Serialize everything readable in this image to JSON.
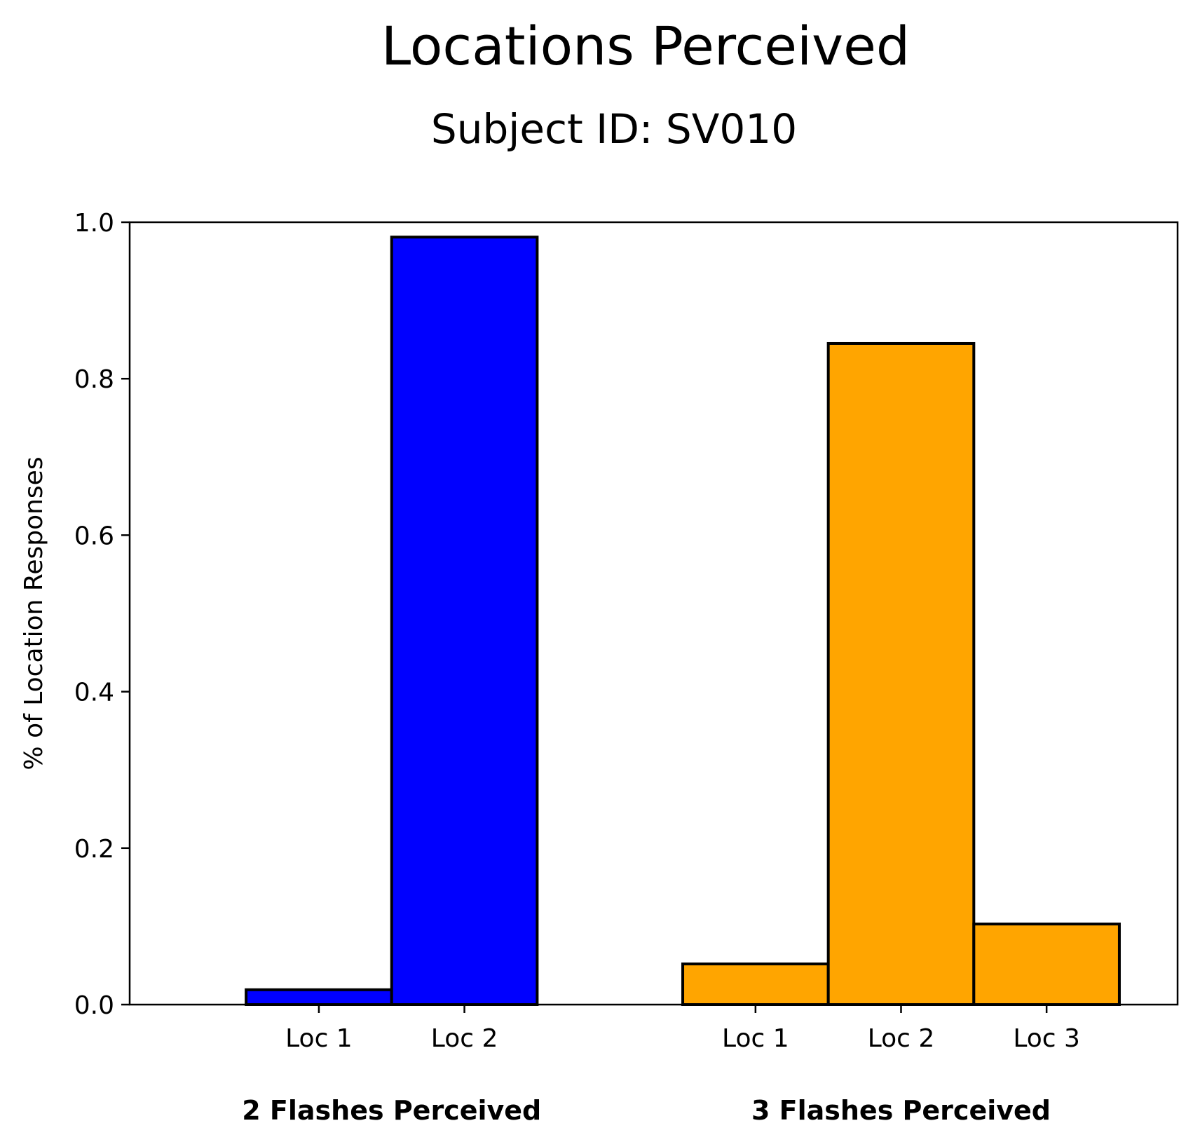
{
  "chart_data": {
    "type": "bar",
    "title": "Locations Perceived",
    "subtitle": "Subject ID: SV010",
    "ylabel": "% of Location Responses",
    "ylim": [
      0,
      1.0
    ],
    "yticks": [
      "0.0",
      "0.2",
      "0.4",
      "0.6",
      "0.8",
      "1.0"
    ],
    "grid": false,
    "groups": [
      {
        "label": "2 Flashes Perceived",
        "color": "#0000ff",
        "categories": [
          "Loc 1",
          "Loc 2"
        ],
        "values": [
          0.019,
          0.981
        ]
      },
      {
        "label": "3 Flashes Perceived",
        "color": "#ffa500",
        "categories": [
          "Loc 1",
          "Loc 2",
          "Loc 3"
        ],
        "values": [
          0.052,
          0.845,
          0.103
        ]
      }
    ]
  }
}
